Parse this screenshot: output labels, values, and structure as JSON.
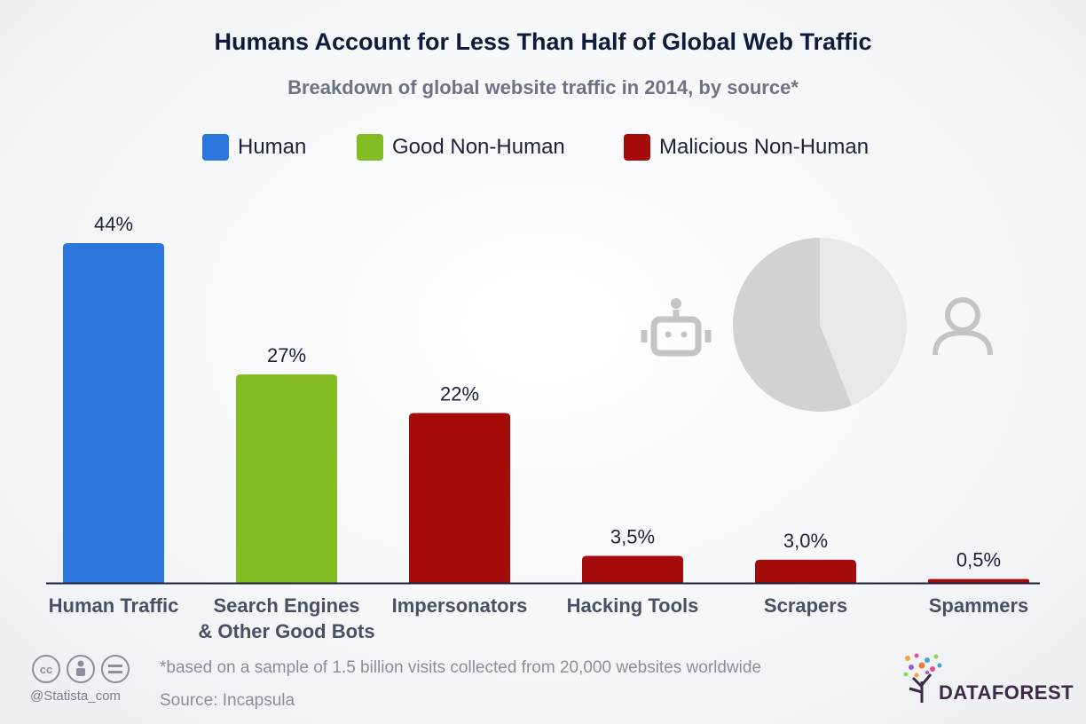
{
  "header": {
    "title": "Humans Account for Less Than Half of Global Web Traffic",
    "subtitle": "Breakdown of global website traffic in 2014, by source*"
  },
  "legend": [
    {
      "label": "Human",
      "color": "#2a76dd"
    },
    {
      "label": "Good Non-Human",
      "color": "#84bd23"
    },
    {
      "label": "Malicious Non-Human",
      "color": "#a50b0b"
    }
  ],
  "chart_data": {
    "type": "bar",
    "categories": [
      "Human Traffic",
      "Search Engines\n& Other Good Bots",
      "Impersonators",
      "Hacking Tools",
      "Scrapers",
      "Spammers"
    ],
    "values": [
      44,
      27,
      22,
      3.5,
      3.0,
      0.5
    ],
    "value_labels": [
      "44%",
      "27%",
      "22%",
      "3,5%",
      "3,0%",
      "0,5%"
    ],
    "groups": [
      "Human",
      "Good Non-Human",
      "Malicious Non-Human",
      "Malicious Non-Human",
      "Malicious Non-Human",
      "Malicious Non-Human"
    ],
    "colors": [
      "#2a76dd",
      "#84bd23",
      "#a50b0b",
      "#a50b0b",
      "#a50b0b",
      "#a50b0b"
    ],
    "ylim": [
      0,
      44
    ],
    "grid": false,
    "legend_position": "top",
    "inset_pie": {
      "values": [
        56,
        44
      ],
      "colors": [
        "#d2d2d2",
        "#e8e8e8"
      ],
      "icons": [
        "robot-icon",
        "person-icon"
      ]
    }
  },
  "footer": {
    "handle": "@Statista_com",
    "note": "*based on a sample of 1.5 billion visits collected from 20,000 websites worldwide",
    "source": "Source: Incapsula",
    "brand": "DATAFOREST",
    "icons": [
      "cc-icon",
      "by-icon",
      "nd-icon"
    ]
  }
}
